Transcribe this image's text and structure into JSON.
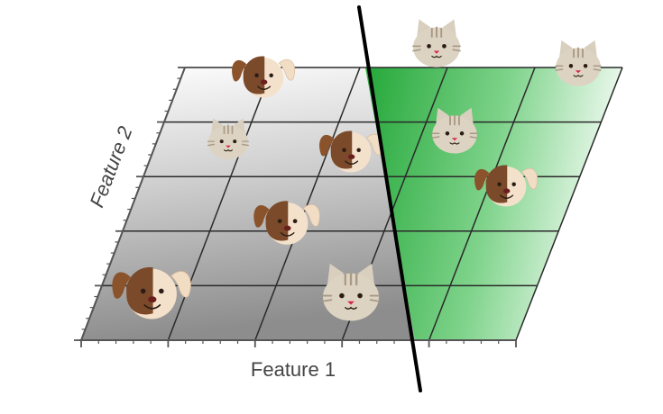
{
  "diagram": {
    "x_axis_label": "Feature 1",
    "y_axis_label": "Feature 2",
    "left_region_color": "#8a8a8a",
    "right_region_color": "#2fb344",
    "boundary_color": "#000000"
  },
  "animals": [
    {
      "kind": "dog",
      "region": "left"
    },
    {
      "kind": "cat",
      "region": "left"
    },
    {
      "kind": "dog",
      "region": "left"
    },
    {
      "kind": "dog",
      "region": "left"
    },
    {
      "kind": "dog",
      "region": "left"
    },
    {
      "kind": "cat",
      "region": "left"
    },
    {
      "kind": "cat",
      "region": "right"
    },
    {
      "kind": "cat",
      "region": "right"
    },
    {
      "kind": "cat",
      "region": "right"
    },
    {
      "kind": "dog",
      "region": "right"
    }
  ]
}
